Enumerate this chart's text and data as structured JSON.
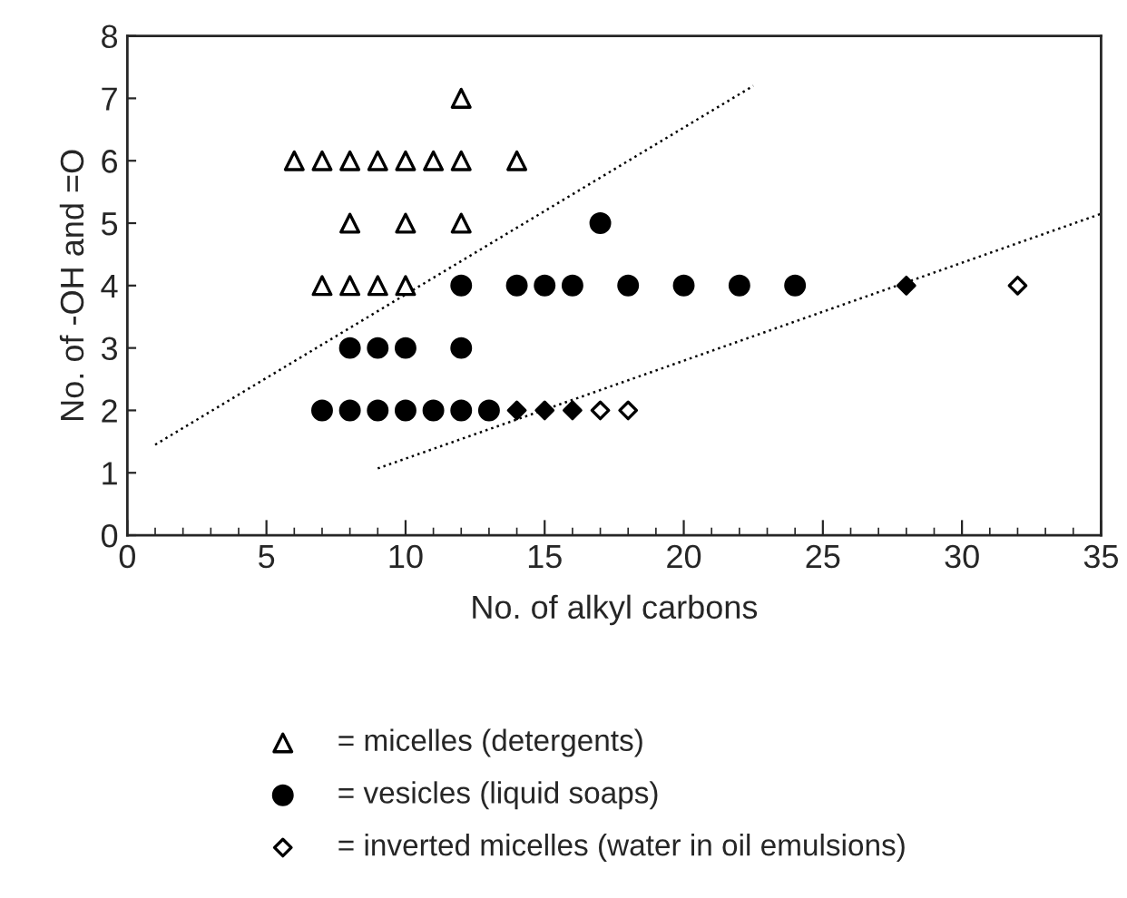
{
  "chart_data": {
    "type": "scatter",
    "xlabel": "No. of alkyl carbons",
    "ylabel": "No. of -OH and =O",
    "xlim": [
      0,
      35
    ],
    "ylim": [
      0,
      8
    ],
    "xticks": [
      0,
      5,
      10,
      15,
      20,
      25,
      30,
      35
    ],
    "yticks": [
      0,
      1,
      2,
      3,
      4,
      5,
      6,
      7,
      8
    ],
    "grid": false,
    "legend": "bottom",
    "series": [
      {
        "name": "= micelles (detergents)",
        "color": "#ffffff",
        "marker": "triangle",
        "x": [
          12,
          6,
          7,
          8,
          9,
          10,
          11,
          12,
          14,
          8,
          10,
          12,
          7,
          8,
          9,
          10
        ],
        "values": [
          7,
          6,
          6,
          6,
          6,
          6,
          6,
          6,
          6,
          5,
          5,
          5,
          4,
          4,
          4,
          4
        ]
      },
      {
        "name": "= vesicles (liquid soaps)",
        "color": "#000000",
        "marker": "circle",
        "x": [
          17,
          12,
          14,
          15,
          16,
          18,
          20,
          22,
          24,
          8,
          9,
          10,
          12,
          7,
          8,
          9,
          10,
          11,
          12,
          13
        ],
        "values": [
          5,
          4,
          4,
          4,
          4,
          4,
          4,
          4,
          4,
          3,
          3,
          3,
          3,
          2,
          2,
          2,
          2,
          2,
          2,
          2
        ]
      },
      {
        "name": "= inverted micelles (water in oil emulsions)",
        "color": "#ffffff",
        "marker": "diamond",
        "x": [
          17,
          18,
          32
        ],
        "values": [
          2,
          2,
          4
        ]
      },
      {
        "color": "#000000",
        "marker": "diamond",
        "x": [
          14,
          15,
          16,
          28
        ],
        "values": [
          2,
          2,
          2,
          4
        ]
      },
      {
        "type": "line",
        "color": "#000000",
        "line_style": "dotted",
        "x": [
          1,
          22.5
        ],
        "values": [
          1.45,
          7.2
        ]
      },
      {
        "type": "line",
        "color": "#000000",
        "line_style": "dotted",
        "x": [
          9,
          35
        ],
        "values": [
          1.07,
          5.15
        ]
      }
    ]
  }
}
